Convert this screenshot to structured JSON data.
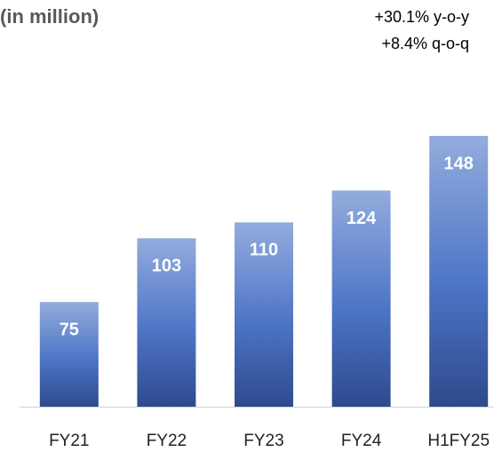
{
  "chart_data": {
    "type": "bar",
    "title": "(in million)",
    "annotations": [
      "+30.1% y-o-y",
      "+8.4% q-o-q"
    ],
    "categories": [
      "FY21",
      "FY22",
      "FY23",
      "FY24",
      "H1FY25"
    ],
    "values": [
      75,
      103,
      110,
      124,
      148
    ],
    "color": "#4a72c4",
    "ylim": [
      29,
      148
    ]
  }
}
